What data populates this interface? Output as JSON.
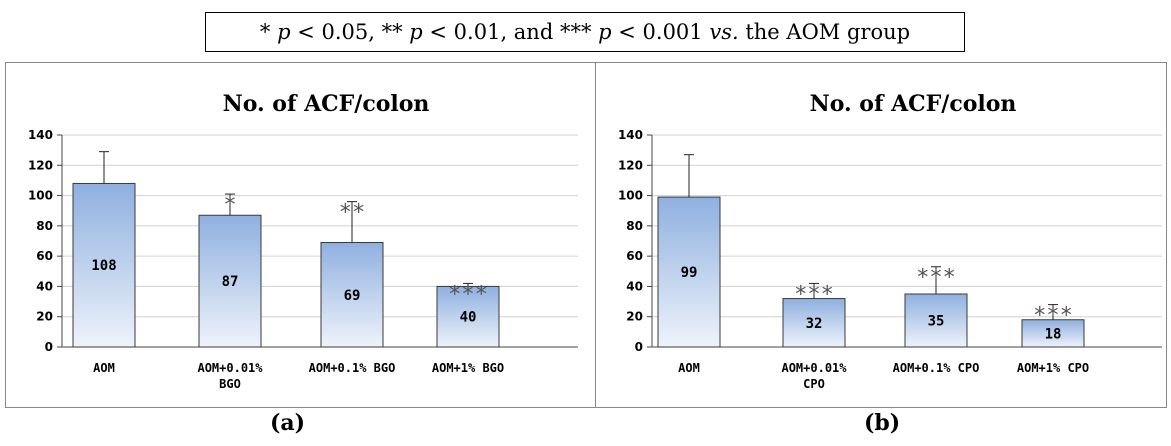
{
  "legend": {
    "p1": "p",
    "t1": " < 0.05, ** ",
    "p2": "p",
    "t2": " < 0.01, and *** ",
    "p3": "p",
    "t3": " < 0.001 ",
    "vs": "vs.",
    "t4": " the AOM group",
    "lead": "* "
  },
  "colors": {
    "bar_top": "#8fb0e0",
    "bar_bottom": "#eef3fb",
    "bar_border": "#3a3a3a",
    "grid": "#d0d0d0"
  },
  "chart_data": [
    {
      "type": "bar",
      "title": "No. of ACF/colon",
      "panel_label": "(a)",
      "ylim": [
        0,
        140
      ],
      "yticks": [
        "0",
        "20",
        "40",
        "60",
        "80",
        "100",
        "120",
        "140"
      ],
      "grid": true,
      "categories": [
        [
          "AOM"
        ],
        [
          "AOM+0.01%",
          "BGO"
        ],
        [
          "AOM+0.1% BGO"
        ],
        [
          "AOM+1% BGO"
        ]
      ],
      "values": [
        108,
        87,
        69,
        40
      ],
      "data_labels": [
        "108",
        "87",
        "69",
        "40"
      ],
      "error_upper": [
        129,
        101,
        96,
        42
      ],
      "significance": [
        "",
        "*",
        "**",
        "***"
      ]
    },
    {
      "type": "bar",
      "title": "No. of ACF/colon",
      "panel_label": "(b)",
      "ylim": [
        0,
        140
      ],
      "yticks": [
        "0",
        "20",
        "40",
        "60",
        "80",
        "100",
        "120",
        "140"
      ],
      "grid": true,
      "categories": [
        [
          "AOM"
        ],
        [
          "AOM+0.01%",
          "CPO"
        ],
        [
          "AOM+0.1% CPO"
        ],
        [
          "AOM+1% CPO"
        ]
      ],
      "values": [
        99,
        32,
        35,
        18
      ],
      "data_labels": [
        "99",
        "32",
        "35",
        "18"
      ],
      "error_upper": [
        127,
        42,
        53,
        28
      ],
      "significance": [
        "",
        "***",
        "***",
        "***"
      ]
    }
  ]
}
